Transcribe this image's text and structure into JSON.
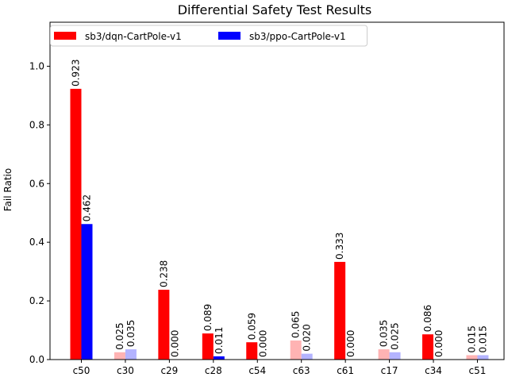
{
  "chart_data": {
    "type": "bar",
    "title": "Differential Safety Test Results",
    "xlabel": "",
    "ylabel": "Fail Ratio",
    "ylim": [
      0,
      1.15
    ],
    "yticks": [
      "0.0",
      "0.2",
      "0.4",
      "0.6",
      "0.8",
      "1.0"
    ],
    "grid": false,
    "legend_position": "top-left",
    "categories": [
      "c50",
      "c30",
      "c29",
      "c28",
      "c54",
      "c63",
      "c61",
      "c17",
      "c34",
      "c51"
    ],
    "series": [
      {
        "name": "sb3/dqn-CartPole-v1",
        "color": "#ff0000",
        "faded_color": "#ffb3b3",
        "values": [
          0.923,
          0.025,
          0.238,
          0.089,
          0.059,
          0.065,
          0.333,
          0.035,
          0.086,
          0.015
        ],
        "labels": [
          "0.923",
          "0.025",
          "0.238",
          "0.089",
          "0.059",
          "0.065",
          "0.333",
          "0.035",
          "0.086",
          "0.015"
        ],
        "faded": [
          false,
          true,
          false,
          false,
          false,
          true,
          false,
          true,
          false,
          true
        ]
      },
      {
        "name": "sb3/ppo-CartPole-v1",
        "color": "#0000ff",
        "faded_color": "#b3b3ff",
        "values": [
          0.462,
          0.035,
          0.0,
          0.011,
          0.0,
          0.02,
          0.0,
          0.025,
          0.0,
          0.015
        ],
        "labels": [
          "0.462",
          "0.035",
          "0.000",
          "0.011",
          "0.000",
          "0.020",
          "0.000",
          "0.025",
          "0.000",
          "0.015"
        ],
        "faded": [
          false,
          true,
          false,
          false,
          false,
          true,
          false,
          true,
          false,
          true
        ]
      }
    ]
  }
}
